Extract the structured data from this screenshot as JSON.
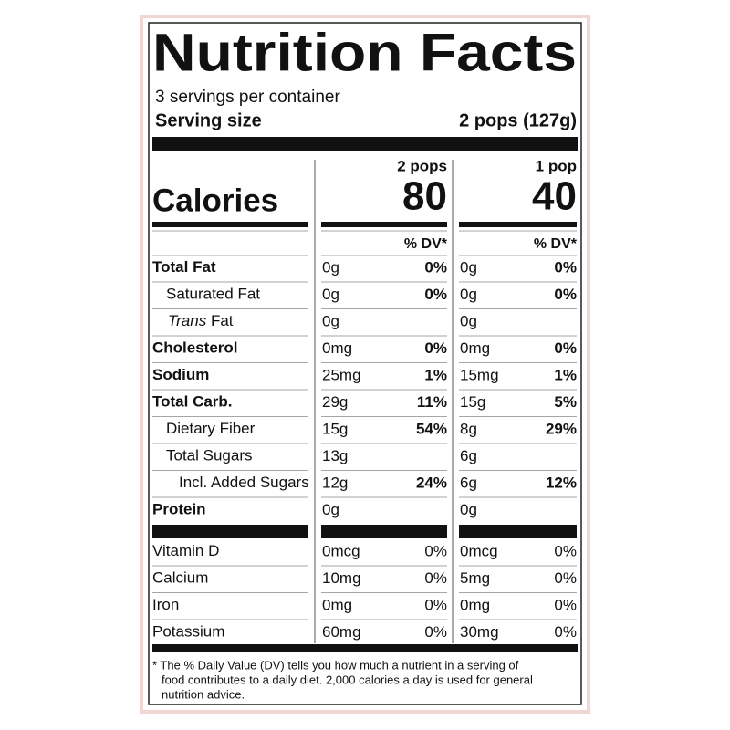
{
  "title": "Nutrition Facts",
  "servings": "3 servings per container",
  "serving_size": {
    "label": "Serving size",
    "value": "2 pops (127g)"
  },
  "calories": {
    "label": "Calories",
    "columns": [
      {
        "header": "2 pops",
        "value": "80"
      },
      {
        "header": "1 pop",
        "value": "40"
      }
    ]
  },
  "dv_header": "% DV*",
  "nutrients": [
    {
      "name": "Total Fat",
      "bold": true,
      "indent": 0,
      "columns": [
        {
          "amount": "0g",
          "dv": "0%"
        },
        {
          "amount": "0g",
          "dv": "0%"
        }
      ]
    },
    {
      "name": "Saturated Fat",
      "bold": false,
      "indent": 1,
      "columns": [
        {
          "amount": "0g",
          "dv": "0%"
        },
        {
          "amount": "0g",
          "dv": "0%"
        }
      ]
    },
    {
      "italic": "Trans",
      "name": "Fat",
      "bold": false,
      "indent": 1,
      "columns": [
        {
          "amount": "0g"
        },
        {
          "amount": "0g"
        }
      ]
    },
    {
      "name": "Cholesterol",
      "bold": true,
      "indent": 0,
      "columns": [
        {
          "amount": "0mg",
          "dv": "0%"
        },
        {
          "amount": "0mg",
          "dv": "0%"
        }
      ]
    },
    {
      "name": "Sodium",
      "bold": true,
      "indent": 0,
      "columns": [
        {
          "amount": "25mg",
          "dv": "1%"
        },
        {
          "amount": "15mg",
          "dv": "1%"
        }
      ]
    },
    {
      "name": "Total Carb.",
      "bold": true,
      "indent": 0,
      "columns": [
        {
          "amount": "29g",
          "dv": "11%"
        },
        {
          "amount": "15g",
          "dv": "5%"
        }
      ]
    },
    {
      "name": "Dietary Fiber",
      "bold": false,
      "indent": 1,
      "columns": [
        {
          "amount": "15g",
          "dv": "54%"
        },
        {
          "amount": "8g",
          "dv": "29%"
        }
      ]
    },
    {
      "name": "Total Sugars",
      "bold": false,
      "indent": 1,
      "columns": [
        {
          "amount": "13g"
        },
        {
          "amount": "6g"
        }
      ]
    },
    {
      "name": "Incl. Added Sugars",
      "bold": false,
      "indent": 2,
      "columns": [
        {
          "amount": "12g",
          "dv": "24%"
        },
        {
          "amount": "6g",
          "dv": "12%"
        }
      ]
    },
    {
      "name": "Protein",
      "bold": true,
      "indent": 0,
      "columns": [
        {
          "amount": "0g"
        },
        {
          "amount": "0g"
        }
      ]
    }
  ],
  "vitamins": [
    {
      "name": "Vitamin D",
      "columns": [
        {
          "amount": "0mcg",
          "dv": "0%"
        },
        {
          "amount": "0mcg",
          "dv": "0%"
        }
      ]
    },
    {
      "name": "Calcium",
      "columns": [
        {
          "amount": "10mg",
          "dv": "0%"
        },
        {
          "amount": "5mg",
          "dv": "0%"
        }
      ]
    },
    {
      "name": "Iron",
      "columns": [
        {
          "amount": "0mg",
          "dv": "0%"
        },
        {
          "amount": "0mg",
          "dv": "0%"
        }
      ]
    },
    {
      "name": "Potassium",
      "columns": [
        {
          "amount": "60mg",
          "dv": "0%"
        },
        {
          "amount": "30mg",
          "dv": "0%"
        }
      ]
    }
  ],
  "footnote": [
    "* The % Daily Value (DV) tells you how much a nutrient in a serving of",
    "food contributes to a daily diet. 2,000 calories a day is used for general",
    "nutrition advice."
  ]
}
